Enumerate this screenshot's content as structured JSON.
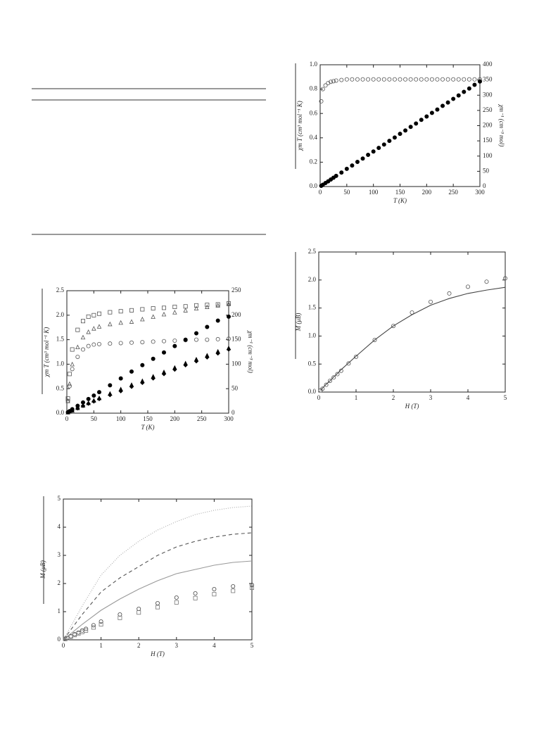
{
  "chart_data": [
    {
      "type": "scatter",
      "x_label": "T (K)",
      "y_label": "χm T (cm³ mol⁻¹ K)",
      "y2_label": "χm⁻¹ (cm⁻³ mol)",
      "x": [
        2,
        5,
        10,
        15,
        20,
        25,
        30,
        40,
        50,
        60,
        70,
        80,
        90,
        100,
        110,
        120,
        130,
        140,
        150,
        160,
        170,
        180,
        190,
        200,
        210,
        220,
        230,
        240,
        250,
        260,
        270,
        280,
        290,
        300
      ],
      "xlim": [
        0,
        300
      ],
      "xticks": [
        0,
        50,
        100,
        150,
        200,
        250,
        300
      ],
      "ylim": [
        0,
        1
      ],
      "yticks": [
        {
          "value": 0,
          "label": "0.0"
        },
        0.2,
        0.4,
        0.6,
        0.8,
        {
          "value": 1,
          "label": "1.0"
        }
      ],
      "y2lim": [
        0,
        400
      ],
      "y2ticks": [
        0,
        50,
        100,
        150,
        200,
        250,
        300,
        350,
        400
      ],
      "series": [
        {
          "color": "#555555",
          "marker": "circle",
          "filled": false,
          "values": [
            0.7,
            0.8,
            0.83,
            0.85,
            0.86,
            0.865,
            0.87,
            0.875,
            0.88,
            0.88,
            0.88,
            0.88,
            0.88,
            0.88,
            0.88,
            0.88,
            0.88,
            0.88,
            0.88,
            0.88,
            0.88,
            0.88,
            0.88,
            0.88,
            0.88,
            0.88,
            0.88,
            0.88,
            0.88,
            0.88,
            0.88,
            0.88,
            0.88,
            0.88
          ]
        },
        {
          "color": "#000000",
          "marker": "circle",
          "filled": true,
          "axis": "y2",
          "values": [
            2.3,
            5.8,
            11.5,
            17,
            23,
            29,
            35,
            46,
            58,
            69,
            81,
            92,
            104,
            115,
            127,
            138,
            150,
            161,
            173,
            184,
            196,
            207,
            219,
            230,
            242,
            253,
            265,
            276,
            288,
            299,
            311,
            322,
            334,
            345
          ]
        }
      ]
    },
    {
      "type": "scatter",
      "x_label": "T (K)",
      "y_label": "χm T (cm³ mol⁻¹ K)",
      "y2_label": "χm⁻¹ (cm⁻³ mol)",
      "x": [
        2,
        5,
        10,
        20,
        30,
        40,
        50,
        60,
        80,
        100,
        120,
        140,
        160,
        180,
        200,
        220,
        240,
        260,
        280,
        300
      ],
      "xlim": [
        0,
        300
      ],
      "xticks": [
        0,
        50,
        100,
        150,
        200,
        250,
        300
      ],
      "ylim": [
        0,
        2.5
      ],
      "yticks": [
        {
          "value": 0,
          "label": "0.0"
        },
        0.5,
        {
          "value": 1,
          "label": "1.0"
        },
        1.5,
        {
          "value": 2,
          "label": "2.0"
        },
        2.5
      ],
      "y2lim": [
        0,
        250
      ],
      "y2ticks": [
        0,
        50,
        100,
        150,
        200,
        250
      ],
      "series": [
        {
          "color": "#555555",
          "marker": "square",
          "filled": false,
          "values": [
            0.3,
            0.8,
            1.3,
            1.7,
            1.88,
            1.97,
            2.0,
            2.03,
            2.06,
            2.08,
            2.1,
            2.12,
            2.14,
            2.15,
            2.17,
            2.18,
            2.2,
            2.21,
            2.22,
            2.24
          ]
        },
        {
          "color": "#555555",
          "marker": "triangle",
          "filled": false,
          "values": [
            0.25,
            0.6,
            1.0,
            1.35,
            1.55,
            1.66,
            1.73,
            1.77,
            1.82,
            1.85,
            1.87,
            1.92,
            1.97,
            2.02,
            2.06,
            2.1,
            2.14,
            2.17,
            2.2,
            2.23
          ]
        },
        {
          "color": "#555555",
          "marker": "circle",
          "filled": false,
          "values": [
            0.25,
            0.55,
            0.9,
            1.15,
            1.3,
            1.37,
            1.4,
            1.41,
            1.42,
            1.43,
            1.44,
            1.45,
            1.46,
            1.47,
            1.48,
            1.49,
            1.5,
            1.5,
            1.51,
            1.52
          ]
        },
        {
          "color": "#000000",
          "marker": "circle",
          "filled": true,
          "axis": "y2",
          "values": [
            2,
            4,
            8,
            15,
            22,
            29,
            36,
            43,
            57,
            71,
            85,
            98,
            111,
            124,
            137,
            150,
            163,
            176,
            189,
            197
          ]
        },
        {
          "color": "#000000",
          "marker": "triangle",
          "filled": true,
          "axis": "y2",
          "values": [
            2,
            4,
            6,
            11,
            16,
            21,
            26,
            31,
            40,
            49,
            58,
            66,
            75,
            84,
            93,
            102,
            110,
            118,
            126,
            133
          ]
        },
        {
          "color": "#000000",
          "marker": "diamond",
          "filled": true,
          "axis": "y2",
          "values": [
            2,
            3.5,
            5.5,
            10,
            15,
            19.5,
            24,
            29,
            37,
            45,
            54,
            62,
            71,
            80,
            89,
            98,
            106,
            114,
            122,
            130
          ]
        }
      ]
    },
    {
      "type": "scatter",
      "x_label": "H (T)",
      "y_label": "M (μB)",
      "x": [
        0.05,
        0.1,
        0.2,
        0.3,
        0.4,
        0.5,
        0.6,
        0.8,
        1,
        1.5,
        2,
        2.5,
        3,
        3.5,
        4,
        4.5,
        5
      ],
      "xlim": [
        0,
        5
      ],
      "xticks": [
        0,
        1,
        2,
        3,
        4,
        5
      ],
      "ylim": [
        0,
        2.5
      ],
      "yticks": [
        {
          "value": 0,
          "label": "0.0"
        },
        0.5,
        {
          "value": 1,
          "label": "1.0"
        },
        1.5,
        {
          "value": 2,
          "label": "2.0"
        },
        2.5
      ],
      "series": [
        {
          "color": "#555555",
          "marker": "circle",
          "filled": false,
          "values": [
            0.03,
            0.06,
            0.13,
            0.2,
            0.26,
            0.32,
            0.38,
            0.51,
            0.63,
            0.93,
            1.18,
            1.42,
            1.61,
            1.76,
            1.88,
            1.97,
            2.03
          ]
        },
        {
          "color": "#444444",
          "line": "solid",
          "values": [
            0.03,
            0.07,
            0.14,
            0.2,
            0.27,
            0.33,
            0.4,
            0.52,
            0.64,
            0.93,
            1.18,
            1.38,
            1.55,
            1.67,
            1.76,
            1.82,
            1.87
          ]
        }
      ]
    },
    {
      "type": "scatter",
      "x_label": "H (T)",
      "y_label": "M (μB)",
      "x": [
        0.05,
        0.1,
        0.2,
        0.3,
        0.4,
        0.5,
        0.6,
        0.8,
        1,
        1.5,
        2,
        2.5,
        3,
        3.5,
        4,
        4.5,
        5
      ],
      "xlim": [
        0,
        5
      ],
      "xticks": [
        0,
        1,
        2,
        3,
        4,
        5
      ],
      "ylim": [
        0,
        5
      ],
      "yticks": [
        0,
        1,
        2,
        3,
        4,
        5
      ],
      "series": [
        {
          "color": "#aaaaaa",
          "line": "dotted",
          "x": [
            0,
            0.5,
            1,
            1.5,
            2,
            2.5,
            3,
            3.5,
            4,
            4.5,
            5
          ],
          "values": [
            0,
            1.2,
            2.3,
            3.0,
            3.5,
            3.9,
            4.2,
            4.45,
            4.6,
            4.7,
            4.75
          ]
        },
        {
          "color": "#555555",
          "line": "dashed",
          "x": [
            0,
            0.5,
            1,
            1.5,
            2,
            2.5,
            3,
            3.5,
            4,
            4.5,
            5
          ],
          "values": [
            0,
            0.9,
            1.7,
            2.2,
            2.6,
            3.0,
            3.3,
            3.5,
            3.65,
            3.75,
            3.8
          ]
        },
        {
          "color": "#999999",
          "line": "solid",
          "x": [
            0,
            0.5,
            1,
            1.5,
            2,
            2.5,
            3,
            3.5,
            4,
            4.5,
            5
          ],
          "values": [
            0,
            0.55,
            1.05,
            1.45,
            1.8,
            2.1,
            2.35,
            2.5,
            2.65,
            2.75,
            2.8
          ]
        },
        {
          "color": "#444444",
          "marker": "circle",
          "filled": false,
          "values": [
            0.04,
            0.07,
            0.13,
            0.2,
            0.26,
            0.33,
            0.39,
            0.52,
            0.65,
            0.9,
            1.1,
            1.3,
            1.5,
            1.65,
            1.8,
            1.9,
            1.95
          ]
        },
        {
          "color": "#777777",
          "marker": "square",
          "filled": false,
          "values": [
            0.03,
            0.06,
            0.11,
            0.17,
            0.22,
            0.28,
            0.33,
            0.44,
            0.55,
            0.78,
            0.97,
            1.16,
            1.33,
            1.48,
            1.62,
            1.74,
            1.85
          ]
        }
      ]
    }
  ]
}
